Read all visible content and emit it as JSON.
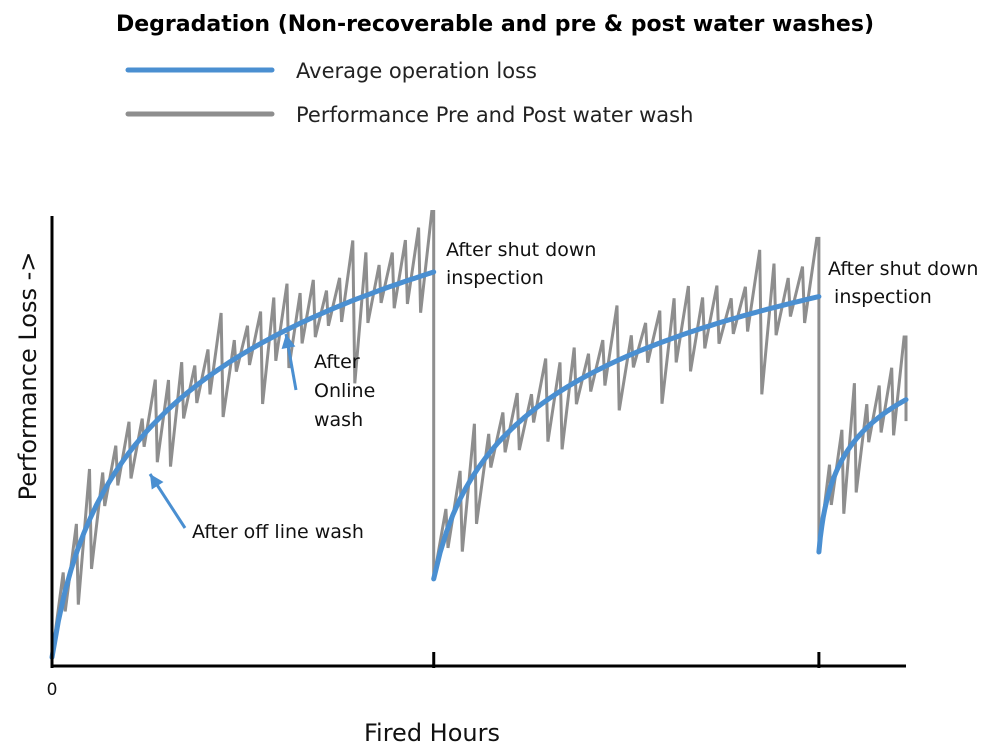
{
  "chart_data": {
    "type": "line",
    "title": "Degradation (Non-recoverable and pre & post water washes)",
    "xlabel": "Fired Hours",
    "ylabel": "Performance Loss ->",
    "x_tick_labels": [
      "0"
    ],
    "legend": {
      "placement": "top-left",
      "entries": [
        {
          "label": "Average operation loss",
          "color": "#4a8fd1"
        },
        {
          "label": "Performance Pre and Post water wash",
          "color": "#8e8e8e"
        }
      ]
    },
    "grid": false,
    "xlim": [
      0,
      100
    ],
    "ylim": [
      0,
      100
    ],
    "series": [
      {
        "name": "Average operation loss",
        "color": "#4a8fd1",
        "segments": [
          {
            "x_start": 0,
            "x_end": 44.7,
            "y_start": 1.5,
            "y_end": 87.5
          },
          {
            "x_start": 44.7,
            "x_end": 89.8,
            "y_start": 19.0,
            "y_end": 82.0
          },
          {
            "x_start": 89.8,
            "x_end": 100,
            "y_start": 25.0,
            "y_end": 59.0
          }
        ]
      },
      {
        "name": "Performance Pre and Post water wash",
        "color": "#8e8e8e",
        "segments": [
          {
            "x_start": 0,
            "x_end": 44.7,
            "end_peak": 101.0,
            "teeth": 29
          },
          {
            "x_start": 44.7,
            "x_end": 89.8,
            "end_peak": 95.0,
            "teeth": 27
          },
          {
            "x_start": 89.8,
            "x_end": 100,
            "end_peak": 73.0,
            "teeth": 7
          }
        ],
        "drops_to": [
          19.0,
          25.0
        ]
      }
    ],
    "x_markers": [
      44.7,
      89.8
    ],
    "annotations": [
      {
        "id": "offline",
        "lines": [
          "After off line wash"
        ]
      },
      {
        "id": "online",
        "lines": [
          "After",
          "Online",
          "wash"
        ]
      },
      {
        "id": "shutdown1",
        "lines": [
          "After shut down",
          "inspection"
        ]
      },
      {
        "id": "shutdown2",
        "lines": [
          "After shut down",
          " inspection"
        ]
      }
    ]
  }
}
